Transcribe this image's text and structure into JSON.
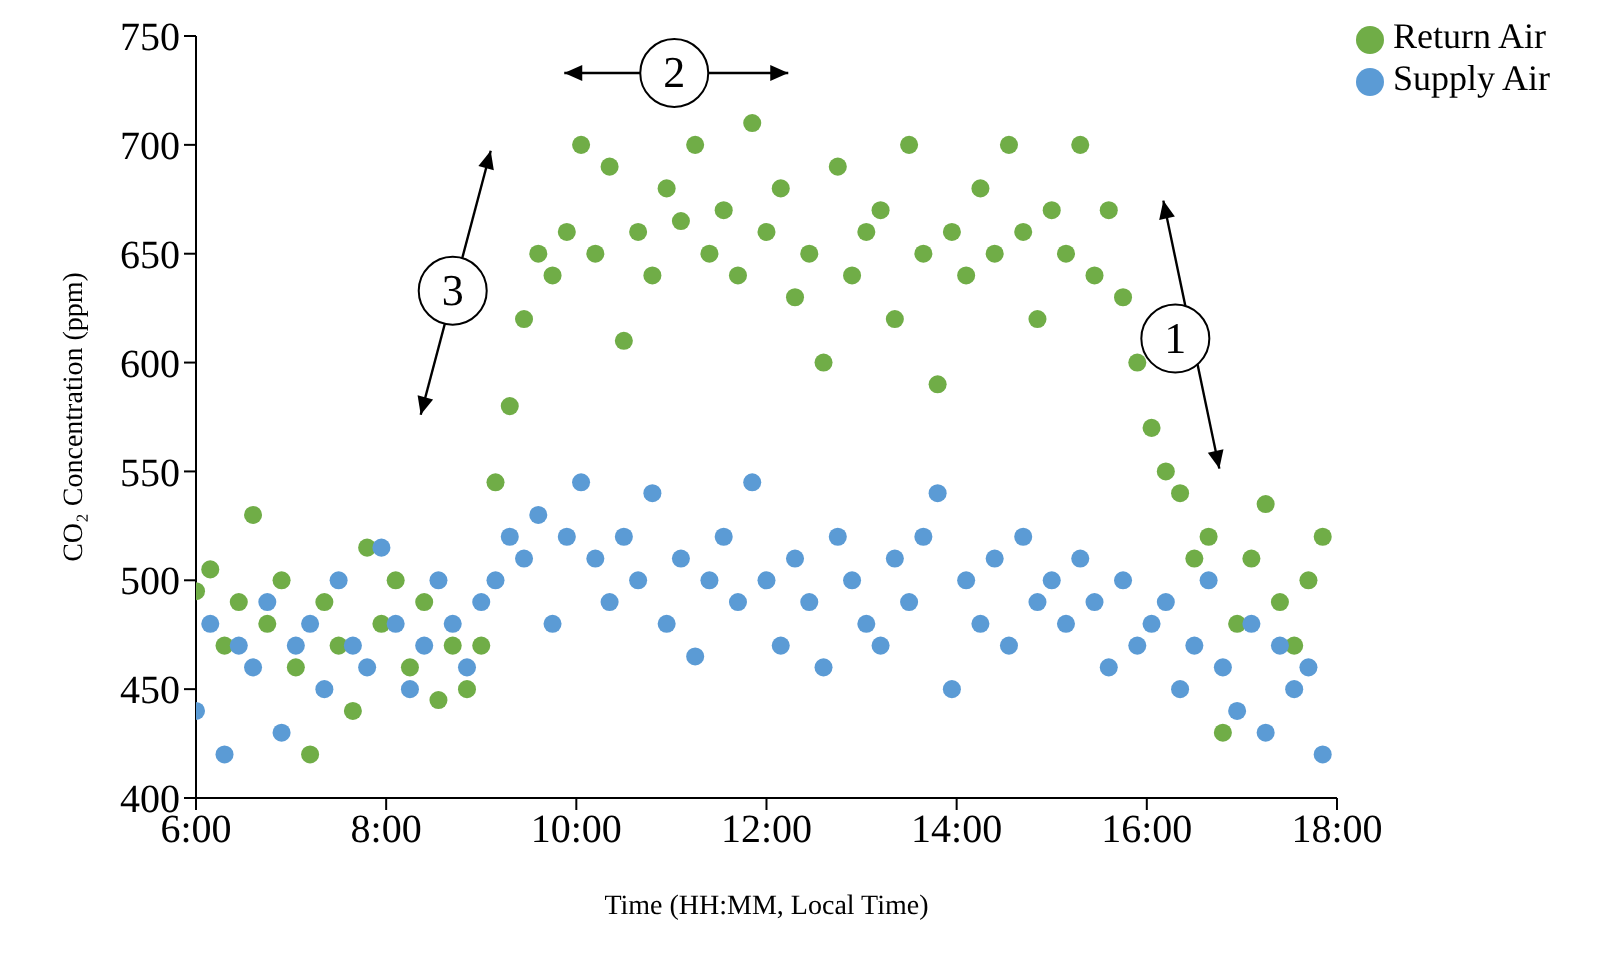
{
  "chart_data": {
    "type": "scatter",
    "xlabel": "Time (HH:MM, Local Time)",
    "ylabel": "CO₂ Concentration (ppm)",
    "x": [
      6.0,
      6.15,
      6.3,
      6.45,
      6.6,
      6.75,
      6.9,
      7.05,
      7.2,
      7.35,
      7.5,
      7.65,
      7.8,
      7.95,
      8.1,
      8.25,
      8.4,
      8.55,
      8.7,
      8.85,
      9.0,
      9.15,
      9.3,
      9.45,
      9.6,
      9.75,
      9.9,
      10.05,
      10.2,
      10.35,
      10.5,
      10.65,
      10.8,
      10.95,
      11.1,
      11.25,
      11.4,
      11.55,
      11.7,
      11.85,
      12.0,
      12.15,
      12.3,
      12.45,
      12.6,
      12.75,
      12.9,
      13.05,
      13.2,
      13.35,
      13.5,
      13.65,
      13.8,
      13.95,
      14.1,
      14.25,
      14.4,
      14.55,
      14.7,
      14.85,
      15.0,
      15.15,
      15.3,
      15.45,
      15.6,
      15.75,
      15.9,
      16.05,
      16.2,
      16.35,
      16.5,
      16.65,
      16.8,
      16.95,
      17.1,
      17.25,
      17.4,
      17.55,
      17.7,
      17.85
    ],
    "series": [
      {
        "name": "Return Air",
        "color": "#70ad47",
        "values": [
          495,
          505,
          470,
          490,
          530,
          480,
          500,
          460,
          420,
          490,
          470,
          440,
          515,
          480,
          500,
          460,
          490,
          445,
          470,
          450,
          470,
          545,
          580,
          620,
          650,
          640,
          660,
          700,
          650,
          690,
          610,
          660,
          640,
          680,
          665,
          700,
          650,
          670,
          640,
          710,
          660,
          680,
          630,
          650,
          600,
          690,
          640,
          660,
          670,
          620,
          700,
          650,
          590,
          660,
          640,
          680,
          650,
          700,
          660,
          620,
          670,
          650,
          700,
          640,
          670,
          630,
          600,
          570,
          550,
          540,
          510,
          520,
          430,
          480,
          510,
          535,
          490,
          470,
          500,
          520
        ]
      },
      {
        "name": "Supply Air",
        "color": "#5b9bd5",
        "values": [
          440,
          480,
          420,
          470,
          460,
          490,
          430,
          470,
          480,
          450,
          500,
          470,
          460,
          515,
          480,
          450,
          470,
          500,
          480,
          460,
          490,
          500,
          520,
          510,
          530,
          480,
          520,
          545,
          510,
          490,
          520,
          500,
          540,
          480,
          510,
          465,
          500,
          520,
          490,
          545,
          500,
          470,
          510,
          490,
          460,
          520,
          500,
          480,
          470,
          510,
          490,
          520,
          540,
          450,
          500,
          480,
          510,
          470,
          520,
          490,
          500,
          480,
          510,
          490,
          460,
          500,
          470,
          480,
          490,
          450,
          470,
          500,
          460,
          440,
          480,
          430,
          470,
          450,
          460,
          420
        ]
      }
    ],
    "xlim": [
      6,
      18
    ],
    "xticks": [
      {
        "value": 6,
        "label": "6:00"
      },
      {
        "value": 8,
        "label": "8:00"
      },
      {
        "value": 10,
        "label": "10:00"
      },
      {
        "value": 12,
        "label": "12:00"
      },
      {
        "value": 14,
        "label": "14:00"
      },
      {
        "value": 16,
        "label": "16:00"
      },
      {
        "value": 18,
        "label": "18:00"
      }
    ],
    "ylim": [
      400,
      750
    ],
    "yticks": [
      400,
      450,
      500,
      550,
      600,
      650,
      700,
      750
    ],
    "grid": false,
    "legend": "top right",
    "marker": "circle",
    "annotations": [
      {
        "text": "1",
        "x": 16.3,
        "y": 611
      },
      {
        "text": "2",
        "x": 11.03,
        "y": 733
      },
      {
        "text": "3",
        "x": 8.7,
        "y": 633
      }
    ]
  }
}
